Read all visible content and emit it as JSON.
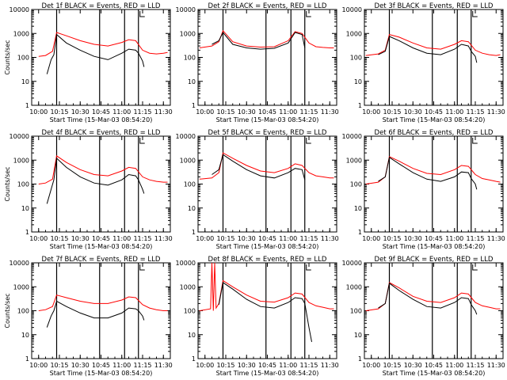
{
  "chart_data": [
    {
      "type": "line",
      "title": "Det 1f BLACK = Events, RED = LLD",
      "xlabel": "Start Time (15-Mar-03 08:54:20)",
      "ylabel": "Counts/sec",
      "xlim": [
        "09:55",
        "11:35"
      ],
      "ylim": [
        1,
        10000
      ],
      "yscale": "log",
      "x_tick_labels": [
        "10:00",
        "10:15",
        "10:30",
        "10:45",
        "11:00",
        "11:15",
        "11:30"
      ],
      "y_tick_labels": [
        "1",
        "10",
        "100",
        "1000",
        "10000"
      ],
      "vertical_markers": [
        "10:13",
        "10:44",
        "11:02",
        "11:12"
      ],
      "series": [
        {
          "color": "#ff0000",
          "x": [
            "10:00",
            "10:05",
            "10:10",
            "10:13",
            "10:20",
            "10:30",
            "10:40",
            "10:50",
            "11:00",
            "11:05",
            "11:10",
            "11:15",
            "11:20",
            "11:25",
            "11:30",
            "11:33"
          ],
          "values": [
            110,
            120,
            180,
            1100,
            800,
            500,
            350,
            300,
            420,
            550,
            500,
            200,
            150,
            140,
            150,
            160
          ]
        },
        {
          "color": "#000000",
          "x": [
            "10:06",
            "10:09",
            "10:11",
            "10:13",
            "10:20",
            "10:30",
            "10:40",
            "10:50",
            "11:00",
            "11:05",
            "11:10",
            "11:12",
            "11:15",
            "11:16"
          ],
          "values": [
            20,
            80,
            130,
            900,
            400,
            200,
            110,
            80,
            150,
            220,
            200,
            150,
            70,
            40
          ]
        }
      ]
    },
    {
      "type": "line",
      "title": "Det 2f BLACK = Events, RED = LLD",
      "xlabel": "Start Time (15-Mar-03 08:54:20)",
      "ylabel": "",
      "xlim": [
        "09:55",
        "11:35"
      ],
      "ylim": [
        1,
        10000
      ],
      "yscale": "log",
      "x_tick_labels": [
        "10:00",
        "10:15",
        "10:30",
        "10:45",
        "11:00",
        "11:15",
        "11:30"
      ],
      "y_tick_labels": [
        "1",
        "10",
        "100",
        "1000",
        "10000"
      ],
      "vertical_markers": [
        "10:13",
        "10:44",
        "11:02",
        "11:12"
      ],
      "series": [
        {
          "color": "#ff0000",
          "x": [
            "09:56",
            "10:05",
            "10:10",
            "10:13",
            "10:20",
            "10:30",
            "10:40",
            "10:50",
            "11:00",
            "11:05",
            "11:10",
            "11:15",
            "11:20",
            "11:25",
            "11:30",
            "11:33"
          ],
          "values": [
            250,
            300,
            450,
            1300,
            450,
            300,
            270,
            280,
            500,
            1200,
            1000,
            400,
            280,
            260,
            250,
            250
          ]
        },
        {
          "color": "#000000",
          "x": [
            "10:05",
            "10:10",
            "10:13",
            "10:20",
            "10:30",
            "10:40",
            "10:50",
            "11:00",
            "11:05",
            "11:10",
            "11:12"
          ],
          "values": [
            350,
            500,
            1100,
            350,
            250,
            220,
            240,
            400,
            1100,
            900,
            250
          ]
        }
      ]
    },
    {
      "type": "line",
      "title": "Det 3f BLACK = Events, RED = LLD",
      "xlabel": "Start Time (15-Mar-03 08:54:20)",
      "ylabel": "",
      "xlim": [
        "09:55",
        "11:35"
      ],
      "ylim": [
        1,
        10000
      ],
      "yscale": "log",
      "x_tick_labels": [
        "10:00",
        "10:15",
        "10:30",
        "10:45",
        "11:00",
        "11:15",
        "11:30"
      ],
      "y_tick_labels": [
        "1",
        "10",
        "100",
        "1000",
        "10000"
      ],
      "vertical_markers": [
        "10:13",
        "10:44",
        "11:02",
        "11:12"
      ],
      "series": [
        {
          "color": "#ff0000",
          "x": [
            "09:56",
            "10:05",
            "10:10",
            "10:13",
            "10:20",
            "10:30",
            "10:40",
            "10:50",
            "11:00",
            "11:05",
            "11:10",
            "11:15",
            "11:20",
            "11:25",
            "11:30",
            "11:33"
          ],
          "values": [
            120,
            140,
            200,
            900,
            700,
            400,
            250,
            220,
            350,
            500,
            450,
            200,
            150,
            130,
            120,
            130
          ]
        },
        {
          "color": "#000000",
          "x": [
            "10:05",
            "10:10",
            "10:13",
            "10:20",
            "10:30",
            "10:40",
            "10:50",
            "11:00",
            "11:05",
            "11:10",
            "11:12",
            "11:15",
            "11:16"
          ],
          "values": [
            130,
            180,
            750,
            500,
            250,
            150,
            130,
            220,
            350,
            300,
            180,
            110,
            60
          ]
        }
      ]
    },
    {
      "type": "line",
      "title": "Det 4f BLACK = Events, RED = LLD",
      "xlabel": "Start Time (15-Mar-03 08:54:20)",
      "ylabel": "Counts/sec",
      "xlim": [
        "09:55",
        "11:35"
      ],
      "ylim": [
        1,
        10000
      ],
      "yscale": "log",
      "x_tick_labels": [
        "10:00",
        "10:15",
        "10:30",
        "10:45",
        "11:00",
        "11:15",
        "11:30"
      ],
      "y_tick_labels": [
        "1",
        "10",
        "100",
        "1000",
        "10000"
      ],
      "vertical_markers": [
        "10:13",
        "10:44",
        "11:02",
        "11:12"
      ],
      "series": [
        {
          "color": "#ff0000",
          "x": [
            "10:00",
            "10:05",
            "10:10",
            "10:13",
            "10:20",
            "10:30",
            "10:40",
            "10:50",
            "11:00",
            "11:05",
            "11:10",
            "11:15",
            "11:20",
            "11:25",
            "11:30",
            "11:33"
          ],
          "values": [
            100,
            110,
            160,
            1500,
            800,
            400,
            250,
            220,
            350,
            500,
            450,
            200,
            150,
            130,
            120,
            120
          ]
        },
        {
          "color": "#000000",
          "x": [
            "10:06",
            "10:09",
            "10:11",
            "10:13",
            "10:20",
            "10:30",
            "10:40",
            "10:50",
            "11:00",
            "11:05",
            "11:10",
            "11:12",
            "11:15",
            "11:16"
          ],
          "values": [
            15,
            60,
            150,
            1200,
            500,
            200,
            110,
            90,
            150,
            250,
            220,
            150,
            60,
            40
          ]
        }
      ]
    },
    {
      "type": "line",
      "title": "Det 5f BLACK = Events, RED = LLD",
      "xlabel": "Start Time (15-Mar-03 08:54:20)",
      "ylabel": "",
      "xlim": [
        "09:55",
        "11:35"
      ],
      "ylim": [
        1,
        10000
      ],
      "yscale": "log",
      "x_tick_labels": [
        "10:00",
        "10:15",
        "10:30",
        "10:45",
        "11:00",
        "11:15",
        "11:30"
      ],
      "y_tick_labels": [
        "1",
        "10",
        "100",
        "1000",
        "10000"
      ],
      "vertical_markers": [
        "10:13",
        "10:44",
        "11:02",
        "11:12"
      ],
      "series": [
        {
          "color": "#ff0000",
          "x": [
            "09:56",
            "10:05",
            "10:10",
            "10:13",
            "10:20",
            "10:30",
            "10:40",
            "10:50",
            "11:00",
            "11:05",
            "11:10",
            "11:15",
            "11:20",
            "11:25",
            "11:30",
            "11:33"
          ],
          "values": [
            160,
            180,
            300,
            2000,
            1200,
            600,
            350,
            300,
            450,
            700,
            600,
            300,
            220,
            200,
            180,
            180
          ]
        },
        {
          "color": "#000000",
          "x": [
            "10:05",
            "10:10",
            "10:13",
            "10:20",
            "10:30",
            "10:40",
            "10:50",
            "11:00",
            "11:05",
            "11:10",
            "11:12"
          ],
          "values": [
            250,
            400,
            1700,
            900,
            400,
            220,
            180,
            300,
            450,
            400,
            150
          ]
        }
      ]
    },
    {
      "type": "line",
      "title": "Det 6f BLACK = Events, RED = LLD",
      "xlabel": "Start Time (15-Mar-03 08:54:20)",
      "ylabel": "",
      "xlim": [
        "09:55",
        "11:35"
      ],
      "ylim": [
        1,
        10000
      ],
      "yscale": "log",
      "x_tick_labels": [
        "10:00",
        "10:15",
        "10:30",
        "10:45",
        "11:00",
        "11:15",
        "11:30"
      ],
      "y_tick_labels": [
        "1",
        "10",
        "100",
        "1000",
        "10000"
      ],
      "vertical_markers": [
        "10:13",
        "10:44",
        "11:02",
        "11:12"
      ],
      "series": [
        {
          "color": "#ff0000",
          "x": [
            "09:56",
            "10:05",
            "10:10",
            "10:13",
            "10:20",
            "10:30",
            "10:40",
            "10:50",
            "11:00",
            "11:05",
            "11:10",
            "11:15",
            "11:20",
            "11:25",
            "11:30",
            "11:33"
          ],
          "values": [
            100,
            120,
            200,
            1400,
            900,
            450,
            280,
            250,
            400,
            600,
            550,
            250,
            170,
            150,
            130,
            120
          ]
        },
        {
          "color": "#000000",
          "x": [
            "10:05",
            "10:10",
            "10:13",
            "10:20",
            "10:30",
            "10:40",
            "10:50",
            "11:00",
            "11:05",
            "11:10",
            "11:12",
            "11:15",
            "11:16"
          ],
          "values": [
            130,
            200,
            1300,
            700,
            300,
            160,
            130,
            200,
            320,
            300,
            170,
            100,
            60
          ]
        }
      ]
    },
    {
      "type": "line",
      "title": "Det 7f BLACK = Events, RED = LLD",
      "xlabel": "Start Time (15-Mar-03 08:54:20)",
      "ylabel": "Counts/sec",
      "xlim": [
        "09:55",
        "11:35"
      ],
      "ylim": [
        1,
        10000
      ],
      "yscale": "log",
      "x_tick_labels": [
        "10:00",
        "10:15",
        "10:30",
        "10:45",
        "11:00",
        "11:15",
        "11:30"
      ],
      "y_tick_labels": [
        "1",
        "10",
        "100",
        "1000",
        "10000"
      ],
      "vertical_markers": [
        "10:13",
        "10:44",
        "11:02",
        "11:12"
      ],
      "series": [
        {
          "color": "#ff0000",
          "x": [
            "10:00",
            "10:05",
            "10:10",
            "10:13",
            "10:20",
            "10:30",
            "10:40",
            "10:50",
            "11:00",
            "11:05",
            "11:10",
            "11:15",
            "11:20",
            "11:25",
            "11:30",
            "11:33"
          ],
          "values": [
            100,
            110,
            150,
            450,
            350,
            250,
            200,
            200,
            280,
            380,
            350,
            180,
            130,
            110,
            100,
            100
          ]
        },
        {
          "color": "#000000",
          "x": [
            "10:06",
            "10:09",
            "10:11",
            "10:13",
            "10:20",
            "10:30",
            "10:40",
            "10:50",
            "11:00",
            "11:05",
            "11:10",
            "11:12",
            "11:15",
            "11:16"
          ],
          "values": [
            20,
            60,
            100,
            250,
            150,
            80,
            50,
            50,
            80,
            130,
            120,
            100,
            60,
            40
          ]
        }
      ]
    },
    {
      "type": "line",
      "title": "Det 8f BLACK = Events, RED = LLD",
      "xlabel": "Start Time (15-Mar-03 08:54:20)",
      "ylabel": "",
      "xlim": [
        "09:55",
        "11:35"
      ],
      "ylim": [
        1,
        10000
      ],
      "yscale": "log",
      "x_tick_labels": [
        "10:00",
        "10:15",
        "10:30",
        "10:45",
        "11:00",
        "11:15",
        "11:30"
      ],
      "y_tick_labels": [
        "1",
        "10",
        "100",
        "1000",
        "10000"
      ],
      "vertical_markers": [
        "10:13",
        "10:44",
        "11:02",
        "11:12"
      ],
      "series": [
        {
          "color": "#ff0000",
          "x": [
            "09:56",
            "10:04",
            "10:05",
            "10:06",
            "10:07",
            "10:08",
            "10:10",
            "10:13",
            "10:20",
            "10:30",
            "10:40",
            "10:50",
            "11:00",
            "11:05",
            "11:10",
            "11:15",
            "11:20",
            "11:25",
            "11:30",
            "11:33"
          ],
          "values": [
            100,
            120,
            10000,
            100,
            10000,
            130,
            200,
            1800,
            1000,
            450,
            250,
            230,
            350,
            550,
            500,
            220,
            160,
            140,
            120,
            120
          ]
        },
        {
          "color": "#000000",
          "x": [
            "10:10",
            "10:13",
            "10:20",
            "10:30",
            "10:40",
            "10:50",
            "11:00",
            "11:05",
            "11:10",
            "11:12",
            "11:15",
            "11:17"
          ],
          "values": [
            180,
            1500,
            800,
            300,
            150,
            130,
            220,
            350,
            320,
            200,
            20,
            5
          ]
        }
      ]
    },
    {
      "type": "line",
      "title": "Det 9f BLACK = Events, RED = LLD",
      "xlabel": "Start Time (15-Mar-03 08:54:20)",
      "ylabel": "",
      "xlim": [
        "09:55",
        "11:35"
      ],
      "ylim": [
        1,
        10000
      ],
      "yscale": "log",
      "x_tick_labels": [
        "10:00",
        "10:15",
        "10:30",
        "10:45",
        "11:00",
        "11:15",
        "11:30"
      ],
      "y_tick_labels": [
        "1",
        "10",
        "100",
        "1000",
        "10000"
      ],
      "vertical_markers": [
        "10:13",
        "10:44",
        "11:02",
        "11:12"
      ],
      "series": [
        {
          "color": "#ff0000",
          "x": [
            "09:56",
            "10:05",
            "10:10",
            "10:13",
            "10:20",
            "10:30",
            "10:40",
            "10:50",
            "11:00",
            "11:05",
            "11:10",
            "11:15",
            "11:20",
            "11:25",
            "11:30",
            "11:33"
          ],
          "values": [
            100,
            120,
            200,
            1500,
            900,
            400,
            250,
            220,
            350,
            550,
            500,
            220,
            160,
            140,
            120,
            120
          ]
        },
        {
          "color": "#000000",
          "x": [
            "10:05",
            "10:10",
            "10:13",
            "10:20",
            "10:30",
            "10:40",
            "10:50",
            "11:00",
            "11:05",
            "11:10",
            "11:12",
            "11:15",
            "11:16"
          ],
          "values": [
            130,
            200,
            1400,
            700,
            300,
            150,
            130,
            220,
            350,
            320,
            180,
            100,
            70
          ]
        }
      ]
    }
  ]
}
